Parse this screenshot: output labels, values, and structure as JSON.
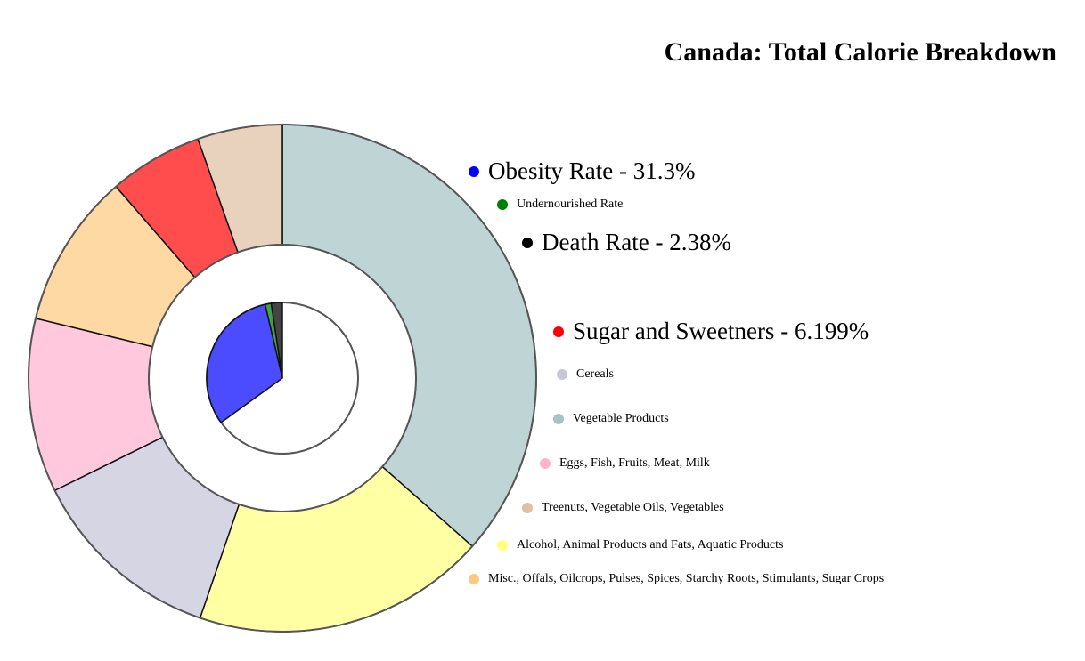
{
  "chart_data": {
    "type": "pie",
    "title": "Canada: Total Calorie Breakdown",
    "rates": [
      {
        "label": "Obesity Rate",
        "value_text": "31.3%",
        "value": 31.3,
        "color": "#4b4bff",
        "legend_color": "#0000ff",
        "emphasized": true
      },
      {
        "label": "Undernourished Rate",
        "value_text": "",
        "value": 1.3,
        "color": "#44a044",
        "legend_color": "#008000",
        "emphasized": false
      },
      {
        "label": "Death Rate",
        "value_text": "2.38%",
        "value": 2.38,
        "color": "#444444",
        "legend_color": "#000000",
        "emphasized": true
      }
    ],
    "categories": [
      {
        "label": "Sugar and Sweetners",
        "value_text": "6.199%",
        "value": 6.199,
        "color": "#ff4d4d",
        "legend_color": "#ff0000",
        "emphasized": true
      },
      {
        "label": "Cereals",
        "value_text": "",
        "value": 12.9,
        "color": "#d5d5e3",
        "legend_color": "#c7c7db",
        "emphasized": false
      },
      {
        "label": "Vegetable Products",
        "value_text": "",
        "value": 37.9,
        "color": "#bfd5d5",
        "legend_color": "#a6c4c4",
        "emphasized": false
      },
      {
        "label": "Eggs, Fish, Fruits, Meat, Milk",
        "value_text": "",
        "value": 11.5,
        "color": "#ffc8dc",
        "legend_color": "#ffb3cc",
        "emphasized": false
      },
      {
        "label": "Treenuts, Vegetable Oils, Vegetables",
        "value_text": "",
        "value": 5.6,
        "color": "#e8d2bd",
        "legend_color": "#dfc0a0",
        "emphasized": false
      },
      {
        "label": "Alcohol, Animal Products and Fats, Aquatic Products",
        "value_text": "",
        "value": 19.4,
        "color": "#ffffa3",
        "legend_color": "#ffff80",
        "emphasized": false
      },
      {
        "label": "Misc., Offals, Oilcrops, Pulses, Spices, Starchy Roots, Stimulants, Sugar Crops",
        "value_text": "",
        "value": 10.2,
        "color": "#ffd9a3",
        "legend_color": "#ffc880",
        "emphasized": false
      }
    ],
    "outer_ring_order": [
      "Vegetable Products",
      "Alcohol, Animal Products and Fats, Aquatic Products",
      "Cereals",
      "Eggs, Fish, Fruits, Meat, Milk",
      "Misc., Offals, Oilcrops, Pulses, Spices, Starchy Roots, Stimulants, Sugar Crops",
      "Sugar and Sweetners",
      "Treenuts, Vegetable Oils, Vegetables"
    ],
    "inner_pie_order": [
      "Death Rate",
      "Undernourished Rate",
      "Obesity Rate"
    ],
    "inner_pie_total": 100,
    "legend_placement": "right"
  }
}
